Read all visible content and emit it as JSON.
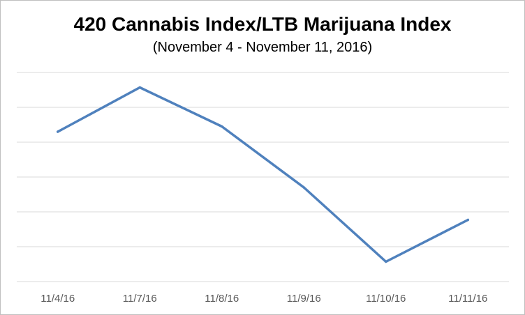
{
  "chart_data": {
    "type": "line",
    "title": "420 Cannabis Index/LTB Marijuana Index",
    "subtitle": "(November 4 - November 11, 2016)",
    "xlabel": "",
    "ylabel": "",
    "categories": [
      "11/4/16",
      "11/7/16",
      "11/8/16",
      "11/9/16",
      "11/10/16",
      "11/11/16"
    ],
    "series": [
      {
        "values": [
          4.3,
          5.57,
          4.45,
          2.7,
          0.57,
          1.77
        ],
        "color": "#4f81bd"
      }
    ],
    "ylim": [
      0,
      6
    ],
    "gridlines": [
      1,
      2,
      3,
      4,
      5,
      6
    ],
    "y_ticks_shown": false,
    "grid": true,
    "legend": "none"
  }
}
